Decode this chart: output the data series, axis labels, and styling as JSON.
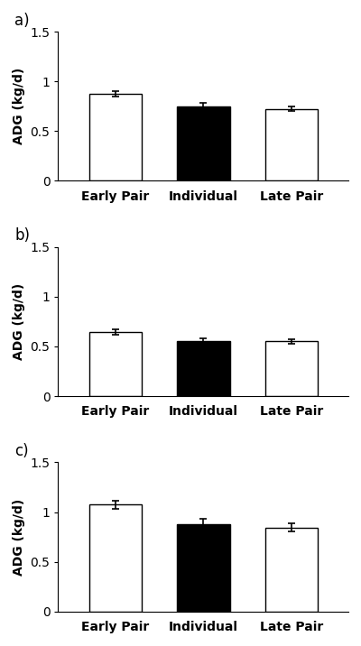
{
  "panels": [
    {
      "label": "a)",
      "categories": [
        "Early Pair",
        "Individual",
        "Late Pair"
      ],
      "values": [
        0.875,
        0.745,
        0.725
      ],
      "errors": [
        0.03,
        0.04,
        0.025
      ],
      "bar_colors": [
        "white",
        "black",
        "white"
      ],
      "bar_edgecolors": [
        "black",
        "black",
        "black"
      ]
    },
    {
      "label": "b)",
      "categories": [
        "Early Pair",
        "Individual",
        "Late Pair"
      ],
      "values": [
        0.645,
        0.555,
        0.55
      ],
      "errors": [
        0.03,
        0.03,
        0.025
      ],
      "bar_colors": [
        "white",
        "black",
        "white"
      ],
      "bar_edgecolors": [
        "black",
        "black",
        "black"
      ]
    },
    {
      "label": "c)",
      "categories": [
        "Early Pair",
        "Individual",
        "Late Pair"
      ],
      "values": [
        1.075,
        0.88,
        0.845
      ],
      "errors": [
        0.04,
        0.055,
        0.04
      ],
      "bar_colors": [
        "white",
        "black",
        "white"
      ],
      "bar_edgecolors": [
        "black",
        "black",
        "black"
      ]
    }
  ],
  "ylabel": "ADG (kg/d)",
  "ylim": [
    0,
    1.5
  ],
  "yticks": [
    0,
    0.5,
    1.0,
    1.5
  ],
  "ytick_labels": [
    "0",
    "0.5",
    "1",
    "1.5"
  ],
  "bar_width": 0.6,
  "figsize": [
    4.0,
    7.16
  ],
  "dpi": 100,
  "background_color": "white",
  "tick_fontsize": 10,
  "xticklabel_fontsize": 10,
  "ylabel_fontsize": 10,
  "panel_label_fontsize": 12,
  "errorbar_capsize": 3,
  "errorbar_linewidth": 1.2,
  "errorbar_color": "black"
}
